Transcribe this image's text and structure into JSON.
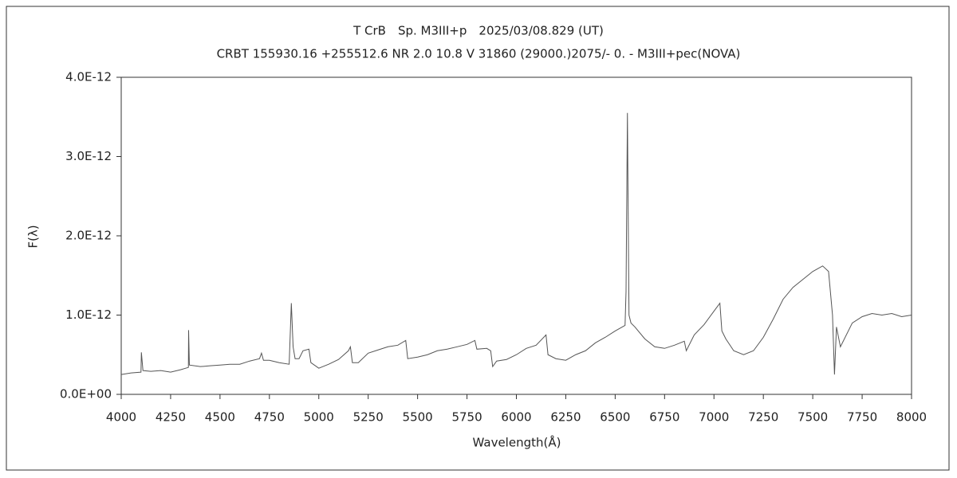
{
  "chart_data": {
    "type": "line",
    "title": "T CrB　Sp. M3III+p　2025/03/08.829 (UT)",
    "subtitle": "CRBT 155930.16 +255512.6 NR 2.0 10.8 V 31860 (29000.)2075/-  0. - M3III+pec(NOVA)",
    "xlabel": "Wavelength(Å)",
    "ylabel": "F(λ)",
    "color": "#555555",
    "x": [
      4000,
      4050,
      4100,
      4102,
      4110,
      4150,
      4200,
      4250,
      4300,
      4340,
      4341,
      4345,
      4400,
      4450,
      4500,
      4550,
      4600,
      4650,
      4700,
      4710,
      4720,
      4750,
      4800,
      4850,
      4861,
      4870,
      4880,
      4900,
      4920,
      4950,
      4960,
      5000,
      5050,
      5100,
      5150,
      5160,
      5170,
      5200,
      5250,
      5300,
      5350,
      5400,
      5440,
      5450,
      5500,
      5550,
      5600,
      5650,
      5700,
      5750,
      5790,
      5800,
      5850,
      5870,
      5880,
      5900,
      5950,
      6000,
      6050,
      6100,
      6150,
      6160,
      6200,
      6250,
      6300,
      6350,
      6400,
      6450,
      6500,
      6550,
      6555,
      6562,
      6565,
      6570,
      6580,
      6600,
      6650,
      6700,
      6750,
      6800,
      6850,
      6860,
      6900,
      6950,
      7000,
      7030,
      7040,
      7060,
      7100,
      7150,
      7200,
      7250,
      7300,
      7350,
      7400,
      7450,
      7500,
      7550,
      7580,
      7600,
      7610,
      7620,
      7640,
      7700,
      7750,
      7800,
      7850,
      7900,
      7950,
      8000
    ],
    "values": [
      2.5e-13,
      2.7e-13,
      2.8e-13,
      5.3e-13,
      3e-13,
      2.9e-13,
      3e-13,
      2.8e-13,
      3.1e-13,
      3.4e-13,
      8.1e-13,
      3.7e-13,
      3.5e-13,
      3.6e-13,
      3.7e-13,
      3.8e-13,
      3.8e-13,
      4.2e-13,
      4.5e-13,
      5.2e-13,
      4.3e-13,
      4.3e-13,
      4e-13,
      3.8e-13,
      1.15e-12,
      6e-13,
      4.5e-13,
      4.5e-13,
      5.5e-13,
      5.7e-13,
      4e-13,
      3.3e-13,
      3.8e-13,
      4.4e-13,
      5.5e-13,
      6e-13,
      4e-13,
      4e-13,
      5.2e-13,
      5.6e-13,
      6e-13,
      6.2e-13,
      6.8e-13,
      4.5e-13,
      4.7e-13,
      5e-13,
      5.5e-13,
      5.7e-13,
      6e-13,
      6.3e-13,
      6.8e-13,
      5.7e-13,
      5.8e-13,
      5.5e-13,
      3.5e-13,
      4.2e-13,
      4.4e-13,
      5e-13,
      5.8e-13,
      6.2e-13,
      7.5e-13,
      5e-13,
      4.5e-13,
      4.3e-13,
      5e-13,
      5.5e-13,
      6.5e-13,
      7.2e-13,
      8e-13,
      8.7e-13,
      1.3e-12,
      3.55e-12,
      2.55e-12,
      1e-12,
      9e-13,
      8.5e-13,
      7e-13,
      6e-13,
      5.8e-13,
      6.2e-13,
      6.7e-13,
      5.5e-13,
      7.5e-13,
      8.8e-13,
      1.05e-12,
      1.15e-12,
      8e-13,
      7e-13,
      5.5e-13,
      5e-13,
      5.5e-13,
      7.2e-13,
      9.5e-13,
      1.2e-12,
      1.35e-12,
      1.45e-12,
      1.55e-12,
      1.62e-12,
      1.55e-12,
      1e-12,
      2.5e-13,
      8.5e-13,
      6e-13,
      9e-13,
      9.8e-13,
      1.02e-12,
      1e-12,
      1.02e-12,
      9.8e-13,
      1e-12
    ],
    "xlim": [
      4000,
      8000
    ],
    "xticks": [
      4000,
      4250,
      4500,
      4750,
      5000,
      5250,
      5500,
      5750,
      6000,
      6250,
      6500,
      6750,
      7000,
      7250,
      7500,
      7750,
      8000
    ],
    "ylim": [
      0,
      4e-12
    ],
    "yticks": [
      {
        "value": 0,
        "label": "0.0E+00"
      },
      {
        "value": 1e-12,
        "label": "1.0E-12"
      },
      {
        "value": 2e-12,
        "label": "2.0E-12"
      },
      {
        "value": 3e-12,
        "label": "3.0E-12"
      },
      {
        "value": 4e-12,
        "label": "4.0E-12"
      }
    ],
    "grid": false
  }
}
